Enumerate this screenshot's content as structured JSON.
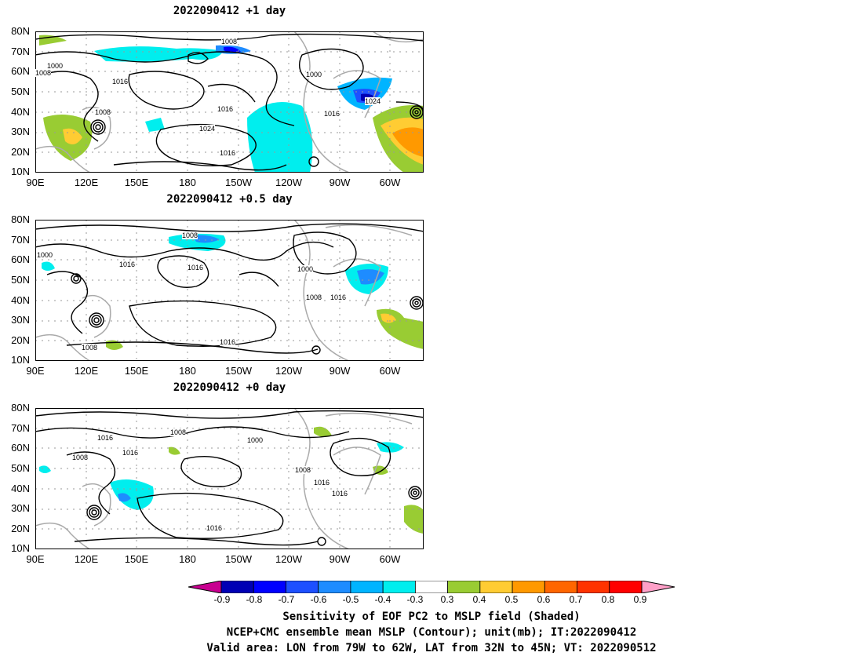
{
  "panels": [
    {
      "title": "2022090412  +1 day",
      "y_ticks": [
        "80N",
        "70N",
        "60N",
        "50N",
        "40N",
        "30N",
        "20N",
        "10N"
      ],
      "x_ticks": [
        "90E",
        "120E",
        "150E",
        "180",
        "150W",
        "120W",
        "90W",
        "60W"
      ],
      "contour_labels": [
        "1008",
        "1000",
        "1008",
        "1016",
        "1000",
        "1016",
        "1024",
        "1008",
        "1016",
        "1024",
        "1016"
      ],
      "shading": "strongest negative sensitivity over the North Pacific and near 70W/45N; positive sensitivity over the western Atlantic and East China Sea"
    },
    {
      "title": "2022090412  +0.5 day",
      "y_ticks": [
        "80N",
        "70N",
        "60N",
        "50N",
        "40N",
        "30N",
        "20N",
        "10N"
      ],
      "x_ticks": [
        "90E",
        "120E",
        "150E",
        "180",
        "150W",
        "120W",
        "90W",
        "60W"
      ],
      "contour_labels": [
        "1008",
        "1000",
        "1016",
        "1016",
        "1000",
        "1008",
        "1016",
        "1008",
        "1016"
      ],
      "shading": "negative sensitivity near 180/70N and 75W/50N; positive near 60W/25N"
    },
    {
      "title": "2022090412  +0 day",
      "y_ticks": [
        "80N",
        "70N",
        "60N",
        "50N",
        "40N",
        "30N",
        "20N",
        "10N"
      ],
      "x_ticks": [
        "90E",
        "120E",
        "150E",
        "180",
        "150W",
        "120W",
        "90W",
        "60W"
      ],
      "contour_labels": [
        "1016",
        "1008",
        "1008",
        "1016",
        "1000",
        "1008",
        "1016",
        "1016",
        "1016"
      ],
      "shading": "weak scattered sensitivity"
    }
  ],
  "colorbar": {
    "labels": [
      "-0.9",
      "-0.8",
      "-0.7",
      "-0.6",
      "-0.5",
      "-0.4",
      "-0.3",
      "0.3",
      "0.4",
      "0.5",
      "0.6",
      "0.7",
      "0.8",
      "0.9"
    ],
    "colors": [
      "#c80090",
      "#0000b4",
      "#0000ff",
      "#1e50ff",
      "#1e8cff",
      "#00b4ff",
      "#00eeee",
      "#ffffff",
      "#99cc33",
      "#ffcc33",
      "#ff9900",
      "#ff6600",
      "#ff3300",
      "#ff0000",
      "#ffa0c8"
    ]
  },
  "caption": {
    "line1": "Sensitivity of EOF PC2 to MSLP field (Shaded)",
    "line2": "NCEP+CMC ensemble mean MSLP (Contour); unit(mb); IT:2022090412",
    "line3": "Valid area: LON from 79W to 62W, LAT from 32N to 45N; VT: 2022090512"
  }
}
